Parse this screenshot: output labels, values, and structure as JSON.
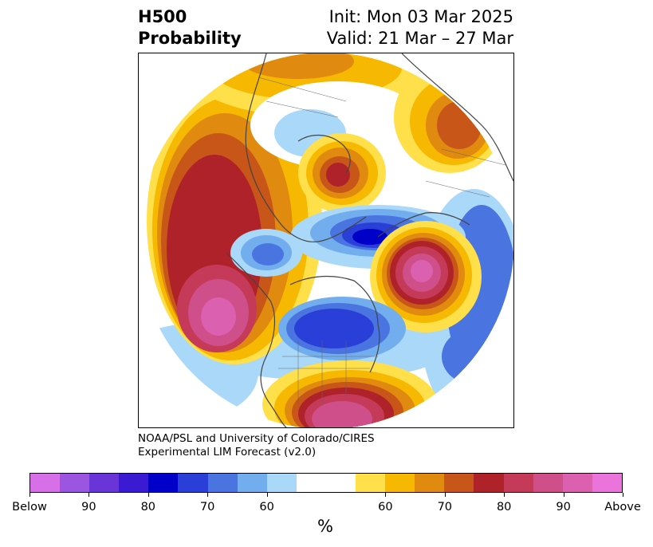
{
  "header": {
    "title_line1": "H500",
    "title_line2": "Probability",
    "init": "Init: Mon 03 Mar 2025",
    "valid": "Valid: 21 Mar – 27 Mar"
  },
  "credit": {
    "line1": "NOAA/PSL and University of Colorado/CIRES",
    "line2": "Experimental LIM Forecast (v2.0)"
  },
  "colorbar": {
    "unit": "%",
    "colors": [
      "#d66fe8",
      "#9b55e0",
      "#6a35d8",
      "#3a1ad2",
      "#0000c8",
      "#2a3fd8",
      "#4a74e0",
      "#72aeee",
      "#aad8f8",
      "#ffffff",
      "#ffffff",
      "#ffe04a",
      "#f6b800",
      "#e08a10",
      "#c85618",
      "#b0222a",
      "#c43a58",
      "#cf4f8a",
      "#dc60b0",
      "#ea74dc"
    ],
    "tick_labels": [
      "Below",
      "90",
      "80",
      "70",
      "60",
      "60",
      "70",
      "80",
      "90",
      "Above"
    ]
  }
}
